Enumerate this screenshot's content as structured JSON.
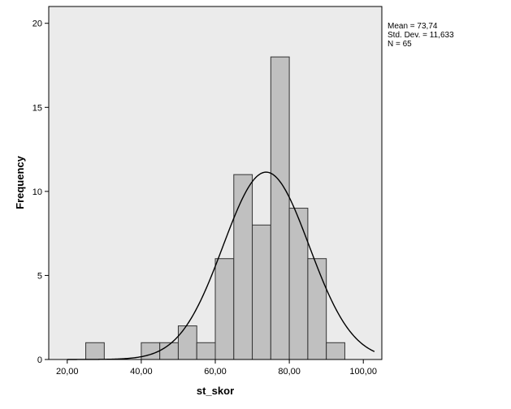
{
  "chart_data": {
    "type": "bar",
    "subtype": "histogram",
    "xlabel": "st_skor",
    "ylabel": "Frequency",
    "xlim": [
      15,
      105
    ],
    "ylim": [
      0,
      21
    ],
    "x_ticks": [
      20,
      40,
      60,
      80,
      100
    ],
    "x_tick_labels": [
      "20,00",
      "40,00",
      "60,00",
      "80,00",
      "100,00"
    ],
    "y_ticks": [
      0,
      5,
      10,
      15,
      20
    ],
    "y_tick_labels": [
      "0",
      "5",
      "10",
      "15",
      "20"
    ],
    "bin_width": 5,
    "bins": [
      {
        "x0": 25,
        "x1": 30,
        "count": 1
      },
      {
        "x0": 30,
        "x1": 35,
        "count": 0
      },
      {
        "x0": 35,
        "x1": 40,
        "count": 0
      },
      {
        "x0": 40,
        "x1": 45,
        "count": 1
      },
      {
        "x0": 45,
        "x1": 50,
        "count": 1
      },
      {
        "x0": 50,
        "x1": 55,
        "count": 2
      },
      {
        "x0": 55,
        "x1": 60,
        "count": 1
      },
      {
        "x0": 60,
        "x1": 65,
        "count": 6
      },
      {
        "x0": 65,
        "x1": 70,
        "count": 11
      },
      {
        "x0": 70,
        "x1": 75,
        "count": 8
      },
      {
        "x0": 75,
        "x1": 80,
        "count": 18
      },
      {
        "x0": 80,
        "x1": 85,
        "count": 9
      },
      {
        "x0": 85,
        "x1": 90,
        "count": 6
      },
      {
        "x0": 90,
        "x1": 95,
        "count": 1
      }
    ],
    "normal_curve": {
      "mean": 73.74,
      "sd": 11.633,
      "n": 65
    },
    "stats_lines": [
      "Mean = 73,74",
      "Std. Dev. = 11,633",
      "N = 65"
    ],
    "colors": {
      "plot_background": "#ebebeb",
      "bar_fill": "#c0c0c0",
      "bar_stroke": "#333333",
      "curve": "#000000"
    },
    "grid": false,
    "legend": "none"
  }
}
